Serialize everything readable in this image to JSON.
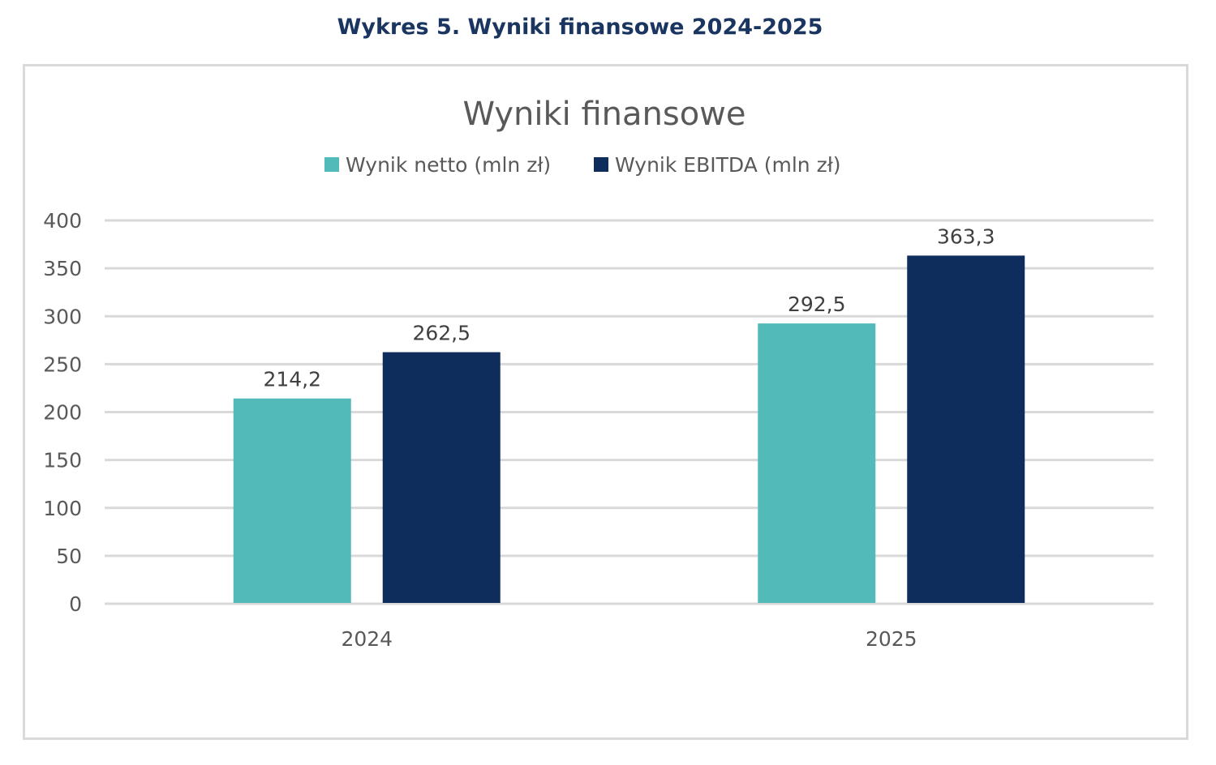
{
  "figure_caption": "Wykres 5. Wyniki finansowe 2024-2025",
  "chart_data": {
    "type": "bar",
    "title": "Wyniki finansowe",
    "xlabel": "",
    "ylabel": "",
    "categories": [
      "2024",
      "2025"
    ],
    "series": [
      {
        "name": "Wynik netto (mln zł)",
        "values": [
          214.2,
          292.5
        ],
        "labels": [
          "214,2",
          "292,5"
        ],
        "color": "#52bbba"
      },
      {
        "name": "Wynik EBITDA (mln zł)",
        "values": [
          262.5,
          363.3
        ],
        "labels": [
          "262,5",
          "363,3"
        ],
        "color": "#0e2d5c"
      }
    ],
    "ylim": [
      0,
      400
    ],
    "yticks": [
      0,
      50,
      100,
      150,
      200,
      250,
      300,
      350,
      400
    ],
    "ytick_labels": [
      "0",
      "50",
      "100",
      "150",
      "200",
      "250",
      "300",
      "350",
      "400"
    ],
    "grid": true,
    "legend_position": "top-center"
  }
}
